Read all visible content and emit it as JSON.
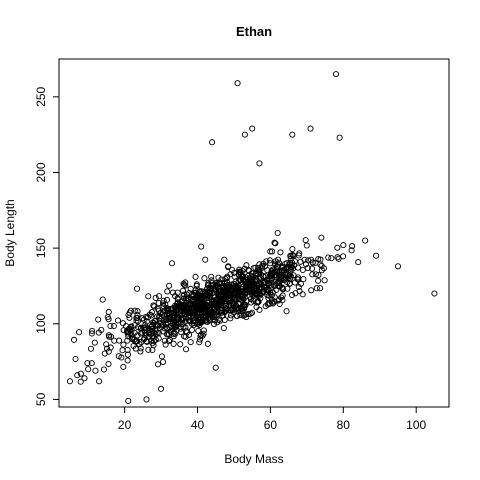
{
  "chart_data": {
    "type": "scatter",
    "title": "Ethan",
    "xlabel": "Body Mass",
    "ylabel": "Body Length",
    "xlim": [
      2,
      109
    ],
    "ylim": [
      45,
      275
    ],
    "xticks": [
      20,
      40,
      60,
      80,
      100
    ],
    "yticks": [
      50,
      100,
      150,
      200,
      250
    ],
    "grid": false,
    "legend": "none",
    "cluster": {
      "count": 1100,
      "x_range": [
        5,
        95
      ],
      "x_mean": 45,
      "x_sd": 14,
      "slope": 0.9,
      "intercept": 74,
      "y_sd": 8
    },
    "points": [
      [
        5,
        62
      ],
      [
        7,
        66
      ],
      [
        8,
        67
      ],
      [
        9,
        64
      ],
      [
        10,
        70
      ],
      [
        11,
        74
      ],
      [
        12,
        69
      ],
      [
        13,
        62
      ],
      [
        14,
        116
      ],
      [
        21,
        49
      ],
      [
        26,
        50
      ],
      [
        30,
        57
      ],
      [
        33,
        140
      ],
      [
        41,
        151
      ],
      [
        45,
        71
      ],
      [
        44,
        220
      ],
      [
        51,
        259
      ],
      [
        53,
        225
      ],
      [
        55,
        229
      ],
      [
        57,
        206
      ],
      [
        62,
        160
      ],
      [
        66,
        225
      ],
      [
        71,
        229
      ],
      [
        78,
        265
      ],
      [
        79,
        223
      ],
      [
        80,
        152
      ],
      [
        86,
        155
      ],
      [
        89,
        145
      ],
      [
        95,
        138
      ],
      [
        105,
        120
      ]
    ]
  }
}
